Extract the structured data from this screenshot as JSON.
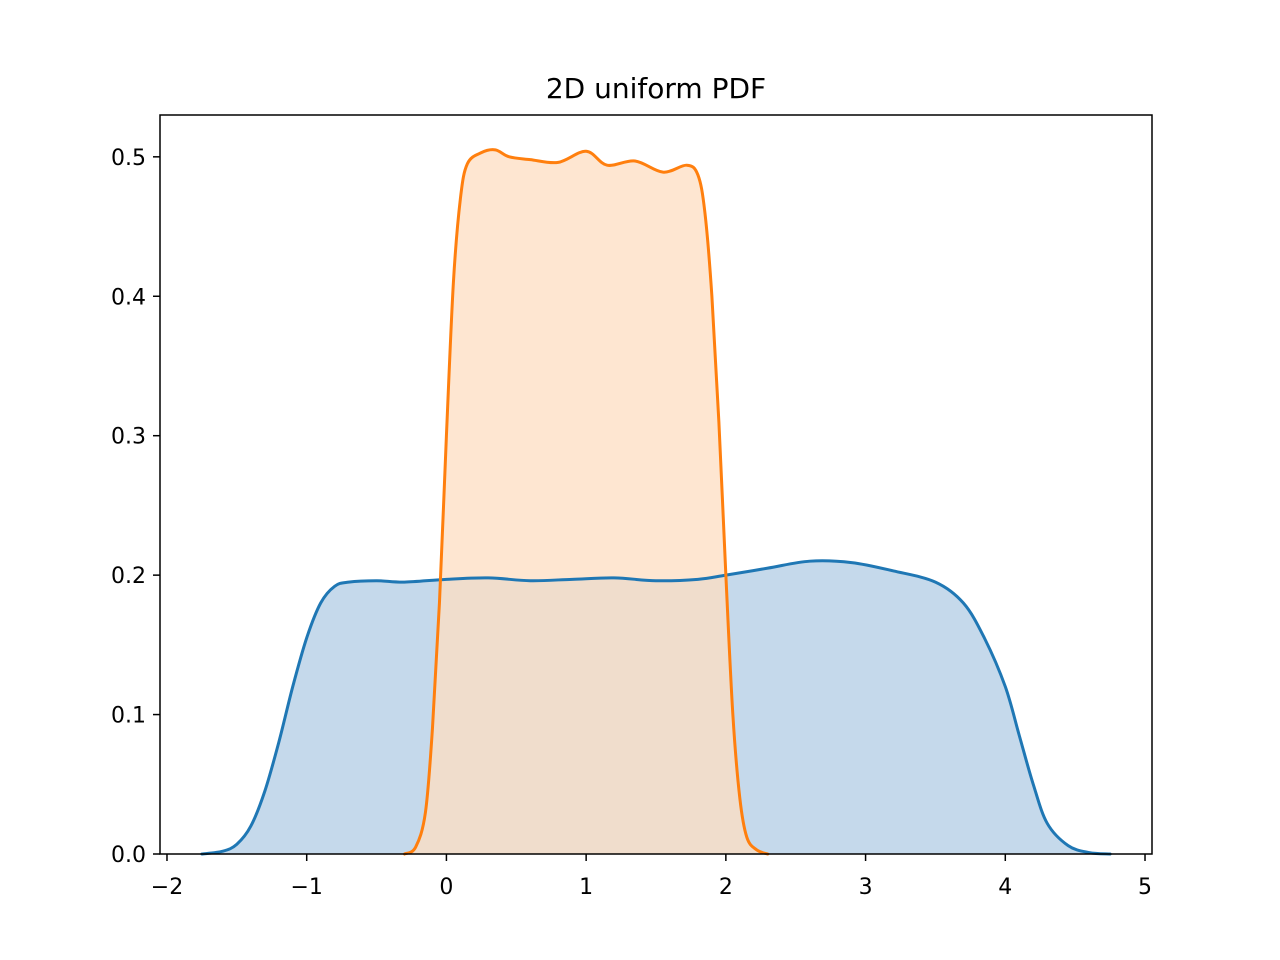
{
  "chart_data": {
    "type": "area",
    "title": "2D uniform PDF",
    "xlabel": "",
    "ylabel": "",
    "xlim": [
      -2.05,
      5.05
    ],
    "ylim": [
      0,
      0.53
    ],
    "grid": false,
    "xticks": [
      -2,
      -1,
      0,
      1,
      2,
      3,
      4,
      5
    ],
    "xtick_labels": [
      "−2",
      "−1",
      "0",
      "1",
      "2",
      "3",
      "4",
      "5"
    ],
    "yticks": [
      0.0,
      0.1,
      0.2,
      0.3,
      0.4,
      0.5
    ],
    "ytick_labels": [
      "0.0",
      "0.1",
      "0.2",
      "0.3",
      "0.4",
      "0.5"
    ],
    "series": [
      {
        "color": "#1f77b4",
        "fill_color": "#c5d9eb",
        "points": [
          [
            -1.75,
            0.0
          ],
          [
            -1.6,
            0.002
          ],
          [
            -1.5,
            0.007
          ],
          [
            -1.4,
            0.02
          ],
          [
            -1.3,
            0.045
          ],
          [
            -1.2,
            0.08
          ],
          [
            -1.1,
            0.12
          ],
          [
            -1.0,
            0.155
          ],
          [
            -0.9,
            0.18
          ],
          [
            -0.8,
            0.192
          ],
          [
            -0.7,
            0.195
          ],
          [
            -0.5,
            0.196
          ],
          [
            -0.3,
            0.195
          ],
          [
            0.0,
            0.197
          ],
          [
            0.3,
            0.198
          ],
          [
            0.6,
            0.196
          ],
          [
            0.9,
            0.197
          ],
          [
            1.2,
            0.198
          ],
          [
            1.5,
            0.196
          ],
          [
            1.8,
            0.197
          ],
          [
            2.0,
            0.2
          ],
          [
            2.3,
            0.205
          ],
          [
            2.6,
            0.21
          ],
          [
            2.9,
            0.209
          ],
          [
            3.2,
            0.203
          ],
          [
            3.5,
            0.195
          ],
          [
            3.7,
            0.18
          ],
          [
            3.85,
            0.155
          ],
          [
            4.0,
            0.12
          ],
          [
            4.1,
            0.085
          ],
          [
            4.2,
            0.05
          ],
          [
            4.3,
            0.022
          ],
          [
            4.45,
            0.006
          ],
          [
            4.6,
            0.001
          ],
          [
            4.75,
            0.0
          ]
        ]
      },
      {
        "color": "#ff7f0e",
        "fill_color": "#fdddc2",
        "points": [
          [
            -0.3,
            0.0
          ],
          [
            -0.22,
            0.005
          ],
          [
            -0.15,
            0.03
          ],
          [
            -0.1,
            0.09
          ],
          [
            -0.05,
            0.18
          ],
          [
            0.0,
            0.3
          ],
          [
            0.05,
            0.41
          ],
          [
            0.1,
            0.47
          ],
          [
            0.15,
            0.495
          ],
          [
            0.25,
            0.503
          ],
          [
            0.35,
            0.505
          ],
          [
            0.45,
            0.5
          ],
          [
            0.6,
            0.498
          ],
          [
            0.8,
            0.496
          ],
          [
            1.0,
            0.504
          ],
          [
            1.15,
            0.494
          ],
          [
            1.35,
            0.497
          ],
          [
            1.55,
            0.489
          ],
          [
            1.72,
            0.494
          ],
          [
            1.8,
            0.487
          ],
          [
            1.85,
            0.46
          ],
          [
            1.9,
            0.4
          ],
          [
            1.95,
            0.31
          ],
          [
            2.0,
            0.2
          ],
          [
            2.05,
            0.1
          ],
          [
            2.1,
            0.04
          ],
          [
            2.15,
            0.012
          ],
          [
            2.22,
            0.003
          ],
          [
            2.3,
            0.0
          ]
        ]
      }
    ]
  }
}
